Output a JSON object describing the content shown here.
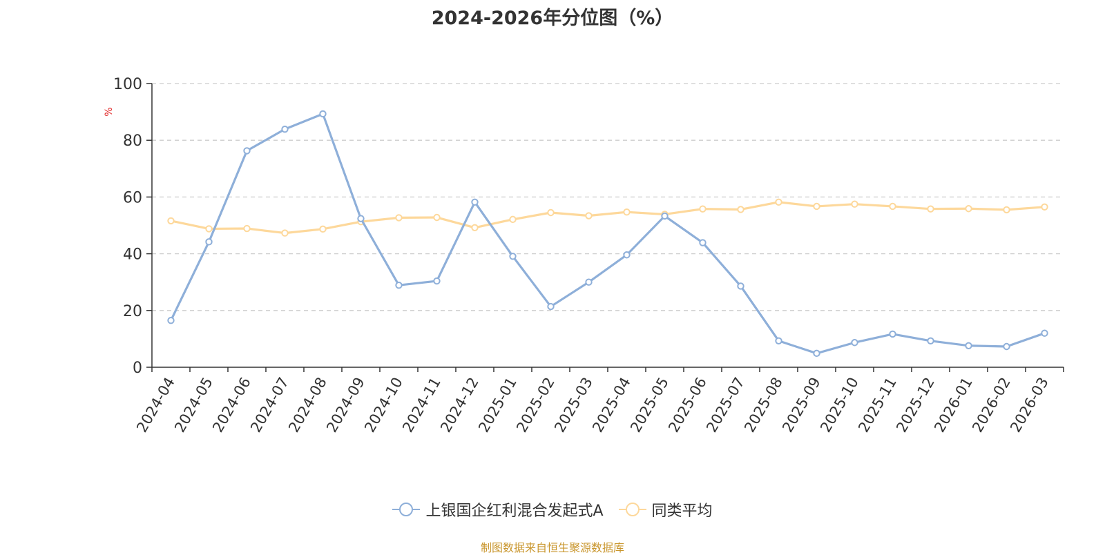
{
  "chart_data": {
    "type": "line",
    "title": "2024-2026年分位图（%）",
    "ylabel": "%",
    "ylim": [
      0,
      100
    ],
    "yticks": [
      0,
      20,
      40,
      60,
      80,
      100
    ],
    "grid": true,
    "legend_position": "bottom",
    "categories": [
      "2024-04",
      "2024-05",
      "2024-06",
      "2024-07",
      "2024-08",
      "2024-09",
      "2024-10",
      "2024-11",
      "2024-12",
      "2025-01",
      "2025-02",
      "2025-03",
      "2025-04",
      "2025-05",
      "2025-06",
      "2025-07",
      "2025-08",
      "2025-09",
      "2025-10",
      "2025-11",
      "2025-12",
      "2026-01",
      "2026-02",
      "2026-03"
    ],
    "series": [
      {
        "name": "上银国企红利混合发起式A",
        "color": "#8eafd9",
        "values": [
          16.5,
          44.2,
          76.3,
          83.9,
          89.3,
          52.4,
          28.9,
          30.4,
          58.2,
          39.1,
          21.4,
          30.0,
          39.6,
          53.3,
          43.9,
          28.6,
          9.3,
          4.9,
          8.7,
          11.7,
          9.3,
          7.6,
          7.3,
          12.0
        ]
      },
      {
        "name": "同类平均",
        "color": "#fdd89b",
        "values": [
          51.6,
          48.8,
          48.9,
          47.3,
          48.7,
          51.3,
          52.7,
          52.8,
          49.2,
          52.1,
          54.5,
          53.4,
          54.7,
          53.9,
          55.8,
          55.6,
          58.2,
          56.7,
          57.5,
          56.7,
          55.8,
          55.9,
          55.5,
          56.5
        ]
      }
    ]
  },
  "footer": {
    "source": "制图数据来自恒生聚源数据库"
  }
}
